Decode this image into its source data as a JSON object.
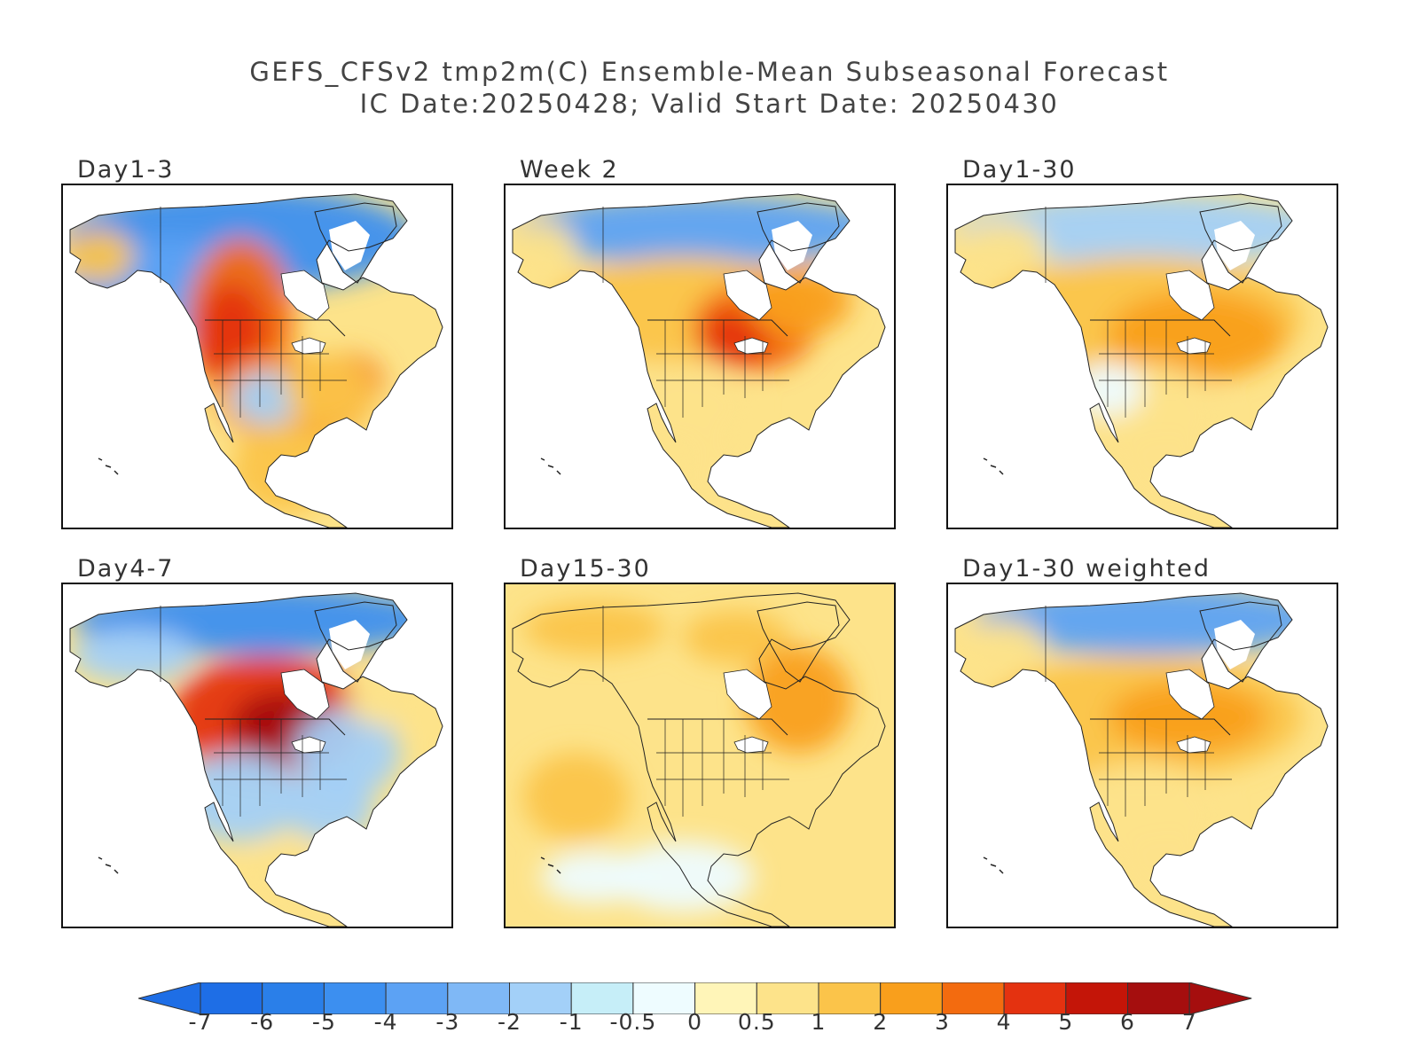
{
  "title_line1": "GEFS_CFSv2 tmp2m(C) Ensemble-Mean Subseasonal Forecast",
  "title_line2": "IC Date:20250428; Valid Start Date: 20250430",
  "panels": [
    {
      "label": "Day1-3",
      "pattern": "west-warm-east-warm-north-cold"
    },
    {
      "label": "Week 2",
      "pattern": "central-warm"
    },
    {
      "label": "Day1-30",
      "pattern": "broad-warm"
    },
    {
      "label": "Day4-7",
      "pattern": "north-central-hot-east-cold"
    },
    {
      "label": "Day15-30",
      "pattern": "uniform-mild-warm"
    },
    {
      "label": "Day1-30 weighted",
      "pattern": "broad-warm-north-cold"
    }
  ],
  "colorbar": {
    "tick_labels": [
      "-7",
      "-6",
      "-5",
      "-4",
      "-3",
      "-2",
      "-1",
      "-0.5",
      "0",
      "0.5",
      "1",
      "2",
      "3",
      "4",
      "5",
      "6",
      "7"
    ],
    "colors": [
      "#1e6ee6",
      "#2a7fe9",
      "#3c8ff0",
      "#5ca2f4",
      "#7fb8f6",
      "#a3d0f8",
      "#c6eef8",
      "#eefcff",
      "#fff5b8",
      "#fde38a",
      "#fbc44a",
      "#f99f1c",
      "#f36b0f",
      "#e43210",
      "#c41508",
      "#a50e0e"
    ],
    "extend_low_color": "#1e6ee6",
    "extend_high_color": "#a50e0e"
  }
}
